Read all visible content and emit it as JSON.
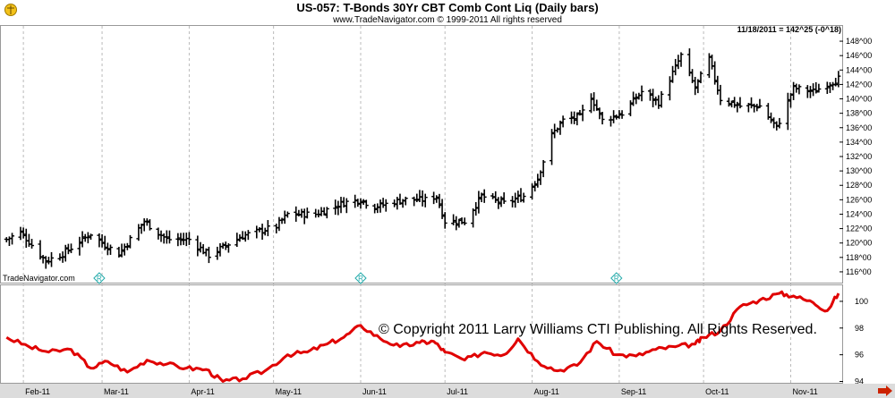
{
  "header": {
    "title": "US-057:  T-Bonds 30Yr CBT Comb Cont Liq  (Daily bars)",
    "subtitle": "www.TradeNavigator.com © 1999-2011 All rights reserved",
    "readout": "11/18/2011 = 142^25 (-0^18)",
    "brand": "TradeNavigator.com",
    "copyright": "© Copyright 2011 Larry Williams CTI Publishing. All Rights Reserved."
  },
  "colors": {
    "bars": "#000000",
    "indicator": "#e00000",
    "grid": "#bbbbbb",
    "marker": "#22aaaa",
    "arrow": "#cc2200",
    "scroll_bg": "#dcdcdc"
  },
  "icons": [
    "scale-logo-icon",
    "scroll-right-arrow-icon",
    "event-marker-icon"
  ],
  "chart_data": [
    {
      "type": "ohlc",
      "title": "US-057:  T-Bonds 30Yr CBT Comb Cont Liq  (Daily bars)",
      "x_ticks": [
        "Feb-11",
        "Mar-11",
        "Apr-11",
        "May-11",
        "Jun-11",
        "Jul-11",
        "Aug-11",
        "Sep-11",
        "Oct-11",
        "Nov-11"
      ],
      "y_ticks": [
        "116^00",
        "118^00",
        "120^00",
        "122^00",
        "124^00",
        "126^00",
        "128^00",
        "130^00",
        "132^00",
        "134^00",
        "136^00",
        "138^00",
        "140^00",
        "142^00",
        "144^00",
        "146^00",
        "148^00"
      ],
      "ylim": [
        115,
        149
      ],
      "grid": "vertical dashed at month starts",
      "last_value": "142^25",
      "markers": [
        {
          "date": "2011-02-28",
          "label": "R"
        },
        {
          "date": "2011-06-01",
          "label": "R"
        },
        {
          "date": "2011-08-31",
          "label": "R"
        }
      ],
      "anchors": [
        {
          "date": "2011-01-26",
          "close": 120.5
        },
        {
          "date": "2011-01-31",
          "close": 121.5
        },
        {
          "date": "2011-02-09",
          "close": 117.5
        },
        {
          "date": "2011-02-15",
          "close": 118.5
        },
        {
          "date": "2011-02-25",
          "close": 121.3
        },
        {
          "date": "2011-03-01",
          "close": 120.0
        },
        {
          "date": "2011-03-07",
          "close": 118.5
        },
        {
          "date": "2011-03-16",
          "close": 123.0
        },
        {
          "date": "2011-03-24",
          "close": 120.5
        },
        {
          "date": "2011-04-01",
          "close": 120.5
        },
        {
          "date": "2011-04-08",
          "close": 118.3
        },
        {
          "date": "2011-04-20",
          "close": 121.0
        },
        {
          "date": "2011-05-02",
          "close": 122.3
        },
        {
          "date": "2011-05-06",
          "close": 124.0
        },
        {
          "date": "2011-05-16",
          "close": 124.0
        },
        {
          "date": "2011-05-26",
          "close": 125.6
        },
        {
          "date": "2011-06-01",
          "close": 126.0
        },
        {
          "date": "2011-06-06",
          "close": 125.0
        },
        {
          "date": "2011-06-16",
          "close": 126.0
        },
        {
          "date": "2011-06-24",
          "close": 126.0
        },
        {
          "date": "2011-06-28",
          "close": 126.5
        },
        {
          "date": "2011-07-01",
          "close": 123.0
        },
        {
          "date": "2011-07-08",
          "close": 123.0
        },
        {
          "date": "2011-07-14",
          "close": 126.5
        },
        {
          "date": "2011-07-22",
          "close": 125.5
        },
        {
          "date": "2011-07-29",
          "close": 126.5
        },
        {
          "date": "2011-08-03",
          "close": 129.0
        },
        {
          "date": "2011-08-08",
          "close": 135.0
        },
        {
          "date": "2011-08-12",
          "close": 137.0
        },
        {
          "date": "2011-08-18",
          "close": 137.5
        },
        {
          "date": "2011-08-22",
          "close": 140.3
        },
        {
          "date": "2011-08-26",
          "close": 137.0
        },
        {
          "date": "2011-09-02",
          "close": 138.0
        },
        {
          "date": "2011-09-09",
          "close": 141.0
        },
        {
          "date": "2011-09-15",
          "close": 139.5
        },
        {
          "date": "2011-09-23",
          "close": 146.0
        },
        {
          "date": "2011-09-28",
          "close": 141.5
        },
        {
          "date": "2011-10-03",
          "close": 145.5
        },
        {
          "date": "2011-10-07",
          "close": 140.0
        },
        {
          "date": "2011-10-14",
          "close": 139.0
        },
        {
          "date": "2011-10-21",
          "close": 139.0
        },
        {
          "date": "2011-10-27",
          "close": 136.0
        },
        {
          "date": "2011-11-02",
          "close": 141.5
        },
        {
          "date": "2011-11-09",
          "close": 141.0
        },
        {
          "date": "2011-11-18",
          "close": 142.8
        }
      ]
    },
    {
      "type": "line",
      "x_ticks": [
        "Feb-11",
        "Mar-11",
        "Apr-11",
        "May-11",
        "Jun-11",
        "Jul-11",
        "Aug-11",
        "Sep-11",
        "Oct-11",
        "Nov-11"
      ],
      "y_ticks": [
        "94",
        "96",
        "98",
        "100"
      ],
      "ylim": [
        93.9,
        101.2
      ],
      "series": [
        {
          "points": [
            {
              "date": "2011-01-26",
              "value": 97.3
            },
            {
              "date": "2011-02-03",
              "value": 96.6
            },
            {
              "date": "2011-02-10",
              "value": 96.2
            },
            {
              "date": "2011-02-18",
              "value": 96.4
            },
            {
              "date": "2011-02-25",
              "value": 95.0
            },
            {
              "date": "2011-03-03",
              "value": 95.5
            },
            {
              "date": "2011-03-10",
              "value": 94.7
            },
            {
              "date": "2011-03-17",
              "value": 95.6
            },
            {
              "date": "2011-03-24",
              "value": 95.3
            },
            {
              "date": "2011-03-31",
              "value": 95.0
            },
            {
              "date": "2011-04-07",
              "value": 94.9
            },
            {
              "date": "2011-04-13",
              "value": 94.0
            },
            {
              "date": "2011-04-20",
              "value": 94.2
            },
            {
              "date": "2011-04-28",
              "value": 94.8
            },
            {
              "date": "2011-05-06",
              "value": 96.0
            },
            {
              "date": "2011-05-13",
              "value": 96.2
            },
            {
              "date": "2011-05-20",
              "value": 96.8
            },
            {
              "date": "2011-05-26",
              "value": 97.3
            },
            {
              "date": "2011-06-01",
              "value": 98.2
            },
            {
              "date": "2011-06-08",
              "value": 97.2
            },
            {
              "date": "2011-06-15",
              "value": 96.6
            },
            {
              "date": "2011-06-22",
              "value": 96.9
            },
            {
              "date": "2011-06-27",
              "value": 97.0
            },
            {
              "date": "2011-07-01",
              "value": 96.2
            },
            {
              "date": "2011-07-08",
              "value": 95.6
            },
            {
              "date": "2011-07-15",
              "value": 96.2
            },
            {
              "date": "2011-07-22",
              "value": 96.0
            },
            {
              "date": "2011-07-27",
              "value": 97.2
            },
            {
              "date": "2011-08-03",
              "value": 95.5
            },
            {
              "date": "2011-08-10",
              "value": 94.8
            },
            {
              "date": "2011-08-17",
              "value": 95.2
            },
            {
              "date": "2011-08-24",
              "value": 97.0
            },
            {
              "date": "2011-08-31",
              "value": 96.0
            },
            {
              "date": "2011-09-07",
              "value": 95.9
            },
            {
              "date": "2011-09-14",
              "value": 96.4
            },
            {
              "date": "2011-09-21",
              "value": 96.6
            },
            {
              "date": "2011-09-28",
              "value": 96.8
            },
            {
              "date": "2011-10-01",
              "value": 97.3
            },
            {
              "date": "2011-10-07",
              "value": 97.8
            },
            {
              "date": "2011-10-14",
              "value": 99.6
            },
            {
              "date": "2011-10-21",
              "value": 100.1
            },
            {
              "date": "2011-10-28",
              "value": 100.6
            },
            {
              "date": "2011-11-02",
              "value": 100.4
            },
            {
              "date": "2011-11-09",
              "value": 99.9
            },
            {
              "date": "2011-11-14",
              "value": 99.3
            },
            {
              "date": "2011-11-18",
              "value": 100.6
            }
          ]
        }
      ]
    }
  ]
}
